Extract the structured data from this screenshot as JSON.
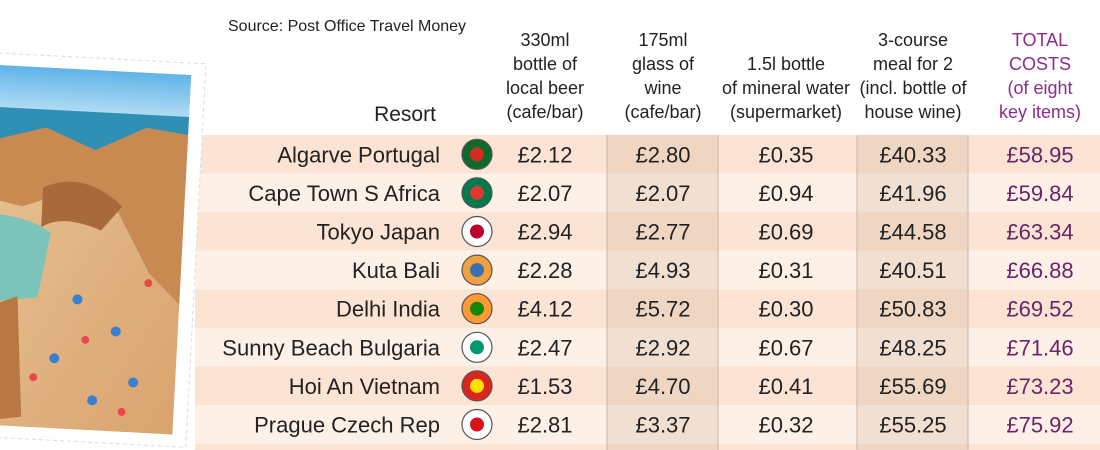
{
  "source": "Source: Post Office Travel Money",
  "headers": {
    "resort": "Resort",
    "beer": [
      "330ml",
      "bottle of",
      "local beer",
      "(cafe/bar)"
    ],
    "wine": [
      "175ml",
      "glass of",
      "wine",
      "(cafe/bar)"
    ],
    "water": [
      "1.5l bottle",
      "of mineral water",
      "(supermarket)"
    ],
    "meal": [
      "3-course",
      "meal for 2",
      "(incl. bottle of",
      "house wine)"
    ],
    "total": [
      "TOTAL",
      "COSTS",
      "(of eight",
      "key items)"
    ]
  },
  "table": {
    "rows": [
      [
        "Algarve Portugal",
        "£2.12",
        "£2.80",
        "£0.35",
        "£40.33",
        "£58.95"
      ],
      [
        "Cape Town S Africa",
        "£2.07",
        "£2.07",
        "£0.94",
        "£41.96",
        "£59.84"
      ],
      [
        "Tokyo Japan",
        "£2.94",
        "£2.77",
        "£0.69",
        "£44.58",
        "£63.34"
      ],
      [
        "Kuta  Bali",
        "£2.28",
        "£4.93",
        "£0.31",
        "£40.51",
        "£66.88"
      ],
      [
        "Delhi India",
        "£4.12",
        "£5.72",
        "£0.30",
        "£50.83",
        "£69.52"
      ],
      [
        "Sunny Beach Bulgaria",
        "£2.47",
        "£2.92",
        "£0.67",
        "£48.25",
        "£71.46"
      ],
      [
        "Hoi An Vietnam",
        "£1.53",
        "£4.70",
        "£0.41",
        "£55.69",
        "£73.23"
      ],
      [
        "Prague Czech Rep",
        "£2.81",
        "£3.37",
        "£0.32",
        "£55.25",
        "£75.92"
      ]
    ]
  }
}
